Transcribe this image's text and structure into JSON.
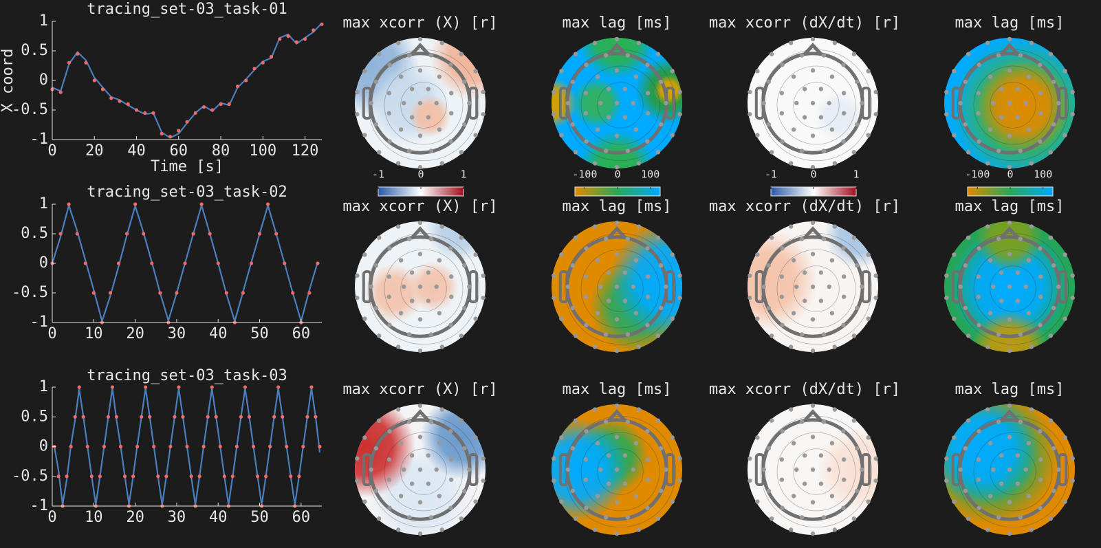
{
  "chart_data": [
    {
      "type": "line",
      "title": "tracing_set-03_task-01",
      "x_label": "Time [s]",
      "y_label": "X coord",
      "x": [
        0,
        4,
        8,
        12,
        16,
        20,
        24,
        28,
        32,
        36,
        40,
        44,
        48,
        52,
        56,
        60,
        64,
        68,
        72,
        76,
        80,
        84,
        88,
        92,
        96,
        100,
        104,
        108,
        112,
        116,
        120,
        124,
        128
      ],
      "series": [
        {
          "color": "#4a7fc0",
          "style": "line",
          "values": [
            -0.12,
            -0.18,
            0.28,
            0.48,
            0.34,
            0.05,
            -0.12,
            -0.28,
            -0.33,
            -0.42,
            -0.5,
            -0.57,
            -0.55,
            -0.88,
            -0.97,
            -0.9,
            -0.72,
            -0.55,
            -0.43,
            -0.52,
            -0.38,
            -0.42,
            -0.12,
            0.02,
            0.18,
            0.32,
            0.38,
            0.72,
            0.78,
            0.62,
            0.72,
            0.82,
            0.97
          ]
        },
        {
          "color": "#f06a6a",
          "style": "dots",
          "values": [
            -0.15,
            -0.2,
            0.3,
            0.45,
            0.3,
            0.0,
            -0.15,
            -0.3,
            -0.35,
            -0.4,
            -0.5,
            -0.55,
            -0.55,
            -0.9,
            -0.95,
            -0.85,
            -0.7,
            -0.55,
            -0.45,
            -0.5,
            -0.4,
            -0.4,
            -0.1,
            0.0,
            0.2,
            0.3,
            0.4,
            0.7,
            0.75,
            0.65,
            0.7,
            0.85,
            0.95
          ]
        }
      ],
      "xlim": [
        0,
        128
      ],
      "ylim": [
        -1,
        1
      ],
      "xticks": [
        0,
        20,
        40,
        60,
        80,
        100,
        120
      ],
      "yticks": [
        1,
        0.5,
        0,
        -0.5,
        -1
      ]
    },
    {
      "type": "line",
      "title": "tracing_set-03_task-02",
      "x": [
        0,
        2,
        4,
        6,
        8,
        10,
        12,
        14,
        16,
        18,
        20,
        22,
        24,
        26,
        28,
        30,
        32,
        34,
        36,
        38,
        40,
        42,
        44,
        46,
        48,
        50,
        52,
        54,
        56,
        58,
        60,
        62,
        64
      ],
      "series": [
        {
          "color": "#4a7fc0",
          "style": "line",
          "values": [
            0,
            0.45,
            0.98,
            0.55,
            0.05,
            -0.45,
            -0.98,
            -0.55,
            -0.05,
            0.48,
            0.97,
            0.52,
            0.02,
            -0.5,
            -0.97,
            -0.5,
            0.0,
            0.5,
            0.98,
            0.5,
            0.0,
            -0.52,
            -0.98,
            -0.48,
            0.02,
            0.5,
            0.98,
            0.5,
            0.0,
            -0.5,
            -0.98,
            -0.45,
            0.02
          ]
        },
        {
          "color": "#f06a6a",
          "style": "dots",
          "values": [
            0,
            0.5,
            1,
            0.5,
            0,
            -0.5,
            -1,
            -0.5,
            0,
            0.5,
            1,
            0.5,
            0,
            -0.5,
            -1,
            -0.5,
            0,
            0.5,
            1,
            0.5,
            0,
            -0.5,
            -1,
            -0.5,
            0,
            0.5,
            1,
            0.5,
            0,
            -0.5,
            -1,
            -0.5,
            0
          ]
        }
      ],
      "xlim": [
        0,
        65
      ],
      "ylim": [
        -1,
        1
      ],
      "xticks": [
        0,
        10,
        20,
        30,
        40,
        50,
        60
      ],
      "yticks": [
        1,
        0.5,
        0,
        -0.5,
        -1
      ]
    },
    {
      "type": "line",
      "title": "tracing_set-03_task-03",
      "x": [
        0.5,
        1.5,
        2.5,
        3.5,
        4.5,
        5.5,
        6.5,
        7.5,
        8.5,
        9.5,
        10.5,
        11.5,
        12.5,
        13.5,
        14.5,
        15.5,
        16.5,
        17.5,
        18.5,
        19.5,
        20.5,
        21.5,
        22.5,
        23.5,
        24.5,
        25.5,
        26.5,
        27.5,
        28.5,
        29.5,
        30.5,
        31.5,
        32.5,
        33.5,
        34.5,
        35.5,
        36.5,
        37.5,
        38.5,
        39.5,
        40.5,
        41.5,
        42.5,
        43.5,
        44.5,
        45.5,
        46.5,
        47.5,
        48.5,
        49.5,
        50.5,
        51.5,
        52.5,
        53.5,
        54.5,
        55.5,
        56.5,
        57.5,
        58.5,
        59.5,
        60.5,
        61.5,
        62.5,
        63.5,
        64.5
      ],
      "series": [
        {
          "color": "#4a7fc0",
          "style": "line",
          "values": [
            0,
            -0.4,
            -0.98,
            -0.55,
            0.02,
            0.45,
            0.97,
            0.5,
            0,
            -0.5,
            -0.98,
            -0.5,
            0,
            0.5,
            0.98,
            0.45,
            0,
            -0.5,
            -0.97,
            -0.5,
            0.02,
            0.5,
            0.98,
            0.5,
            0,
            -0.5,
            -0.98,
            -0.5,
            0,
            0.5,
            0.98,
            0.5,
            0,
            -0.5,
            -0.98,
            -0.5,
            0,
            0.5,
            0.98,
            0.5,
            0,
            -0.5,
            -0.98,
            -0.5,
            0,
            0.5,
            0.98,
            0.5,
            0,
            -0.5,
            -0.98,
            -0.5,
            0,
            0.5,
            0.98,
            0.5,
            0,
            -0.5,
            -0.98,
            -0.5,
            0,
            0.5,
            0.98,
            0.5,
            -0.1
          ]
        },
        {
          "color": "#f06a6a",
          "style": "dots",
          "values": [
            0,
            -0.5,
            -1,
            -0.5,
            0,
            0.5,
            1,
            0.5,
            0,
            -0.5,
            -1,
            -0.5,
            0,
            0.5,
            1,
            0.5,
            0,
            -0.5,
            -1,
            -0.5,
            0,
            0.5,
            1,
            0.5,
            0,
            -0.5,
            -1,
            -0.5,
            0,
            0.5,
            1,
            0.5,
            0,
            -0.5,
            -1,
            -0.5,
            0,
            0.5,
            1,
            0.5,
            0,
            -0.5,
            -1,
            -0.5,
            0,
            0.5,
            1,
            0.5,
            0,
            -0.5,
            -1,
            -0.5,
            0,
            0.5,
            1,
            0.5,
            0,
            -0.5,
            -1,
            -0.5,
            0,
            0.5,
            1,
            0.5,
            0
          ]
        }
      ],
      "xlim": [
        0,
        65
      ],
      "ylim": [
        -1,
        1
      ],
      "xticks": [
        0,
        10,
        20,
        30,
        40,
        50,
        60
      ],
      "yticks": [
        1,
        0.5,
        0,
        -0.5,
        -1
      ]
    },
    {
      "type": "colorbar",
      "xlim": [
        -1,
        1
      ],
      "xticks": [
        -1,
        0,
        1
      ],
      "colors": [
        "#2a5aa8",
        "#ffffff",
        "#a01020"
      ]
    },
    {
      "type": "colorbar",
      "xlim": [
        -130,
        130
      ],
      "xticks": [
        -100,
        0,
        100
      ],
      "colors": [
        "#e08a00",
        "#2aa858",
        "#00aaff"
      ]
    },
    {
      "type": "colorbar",
      "xlim": [
        -1,
        1
      ],
      "xticks": [
        -1,
        0,
        1
      ],
      "colors": [
        "#2a5aa8",
        "#ffffff",
        "#a01020"
      ]
    },
    {
      "type": "colorbar",
      "xlim": [
        -130,
        130
      ],
      "xticks": [
        -100,
        0,
        100
      ],
      "colors": [
        "#e08a00",
        "#2aa858",
        "#00aaff"
      ]
    }
  ],
  "topomaps": [
    {
      "title": "max xcorr (X) [r]"
    },
    {
      "title": "max lag [ms]"
    },
    {
      "title": "max xcorr (dX/dt) [r]"
    },
    {
      "title": "max lag [ms]"
    },
    {
      "title": "max xcorr (X) [r]"
    },
    {
      "title": "max lag [ms]"
    },
    {
      "title": "max xcorr (dX/dt) [r]"
    },
    {
      "title": "max lag [ms]"
    },
    {
      "title": "max xcorr (X) [r]"
    },
    {
      "title": "max lag [ms]"
    },
    {
      "title": "max xcorr (dX/dt) [r]"
    },
    {
      "title": "max lag [ms]"
    }
  ]
}
